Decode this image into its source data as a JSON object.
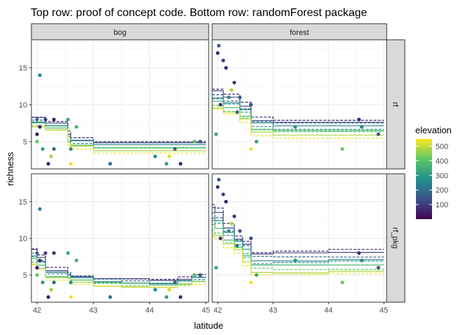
{
  "chart_data": {
    "type": "scatter",
    "title": "Top row: proof of concept code. Bottom row: randomForest package",
    "xlabel": "latitude",
    "ylabel": "richness",
    "xlim": [
      41.9,
      45.05
    ],
    "ylim": [
      1.3,
      18.8
    ],
    "xticks": [
      42,
      43,
      44,
      45
    ],
    "yticks": [
      5,
      10,
      15
    ],
    "grid": true,
    "col_facets": [
      "bog",
      "forest"
    ],
    "row_facets": [
      "rf",
      "rf_pkg"
    ],
    "color_scale": {
      "title": "elevation",
      "ticks": [
        100,
        200,
        300,
        400,
        500
      ],
      "range": [
        0,
        550
      ],
      "stops": [
        "#440154",
        "#3b528b",
        "#21908c",
        "#5dc863",
        "#fde725"
      ]
    },
    "points": {
      "bog": [
        {
          "x": 42.0,
          "y": 5,
          "elev": 420
        },
        {
          "x": 42.0,
          "y": 6,
          "elev": 30
        },
        {
          "x": 42.0,
          "y": 8,
          "elev": 180
        },
        {
          "x": 42.05,
          "y": 14,
          "elev": 250
        },
        {
          "x": 42.05,
          "y": 7,
          "elev": 80
        },
        {
          "x": 42.1,
          "y": 4,
          "elev": 300
        },
        {
          "x": 42.15,
          "y": 8,
          "elev": 100
        },
        {
          "x": 42.2,
          "y": 2,
          "elev": 50
        },
        {
          "x": 42.25,
          "y": 3,
          "elev": 470
        },
        {
          "x": 42.3,
          "y": 8,
          "elev": 60
        },
        {
          "x": 42.3,
          "y": 4,
          "elev": 200
        },
        {
          "x": 42.55,
          "y": 8,
          "elev": 330
        },
        {
          "x": 42.6,
          "y": 4,
          "elev": 280
        },
        {
          "x": 42.6,
          "y": 2,
          "elev": 540
        },
        {
          "x": 42.7,
          "y": 7,
          "elev": 360
        },
        {
          "x": 43.3,
          "y": 2,
          "elev": 200
        },
        {
          "x": 44.1,
          "y": 3,
          "elev": 270
        },
        {
          "x": 44.3,
          "y": 2,
          "elev": 320
        },
        {
          "x": 44.35,
          "y": 3,
          "elev": 520
        },
        {
          "x": 44.45,
          "y": 4,
          "elev": 180
        },
        {
          "x": 44.55,
          "y": 2,
          "elev": 60
        },
        {
          "x": 44.8,
          "y": 5,
          "elev": 400
        },
        {
          "x": 44.9,
          "y": 5,
          "elev": 150
        }
      ],
      "forest": [
        {
          "x": 41.97,
          "y": 6,
          "elev": 340
        },
        {
          "x": 42.0,
          "y": 17,
          "elev": 60
        },
        {
          "x": 42.02,
          "y": 18,
          "elev": 150
        },
        {
          "x": 42.05,
          "y": 10,
          "elev": 80
        },
        {
          "x": 42.1,
          "y": 16,
          "elev": 100
        },
        {
          "x": 42.15,
          "y": 15,
          "elev": 50
        },
        {
          "x": 42.2,
          "y": 11,
          "elev": 260
        },
        {
          "x": 42.25,
          "y": 12,
          "elev": 480
        },
        {
          "x": 42.3,
          "y": 13,
          "elev": 90
        },
        {
          "x": 42.35,
          "y": 9,
          "elev": 200
        },
        {
          "x": 42.4,
          "y": 11,
          "elev": 160
        },
        {
          "x": 42.6,
          "y": 4,
          "elev": 540
        },
        {
          "x": 42.6,
          "y": 10,
          "elev": 130
        },
        {
          "x": 42.7,
          "y": 5,
          "elev": 320
        },
        {
          "x": 43.4,
          "y": 7,
          "elev": 280
        },
        {
          "x": 44.25,
          "y": 4,
          "elev": 420
        },
        {
          "x": 44.55,
          "y": 8,
          "elev": 60
        },
        {
          "x": 44.6,
          "y": 7,
          "elev": 240
        },
        {
          "x": 44.9,
          "y": 6,
          "elev": 150
        }
      ]
    },
    "prediction_lines": {
      "elevations": [
        60,
        120,
        180,
        240,
        300,
        360,
        420,
        480,
        530
      ],
      "rf": {
        "bog": {
          "breaks": [
            41.9,
            42.15,
            42.55,
            42.6,
            43.0,
            45.0
          ],
          "high": [
            8.3,
            7.6,
            6.3,
            5.5,
            5.1
          ],
          "low": [
            6.9,
            6.4,
            4.5,
            4.1,
            3.6
          ]
        },
        "forest": {
          "breaks": [
            41.9,
            42.1,
            42.4,
            42.6,
            43.0,
            45.0
          ],
          "high": [
            12.1,
            11.3,
            10.2,
            8.3,
            8.0
          ],
          "low": [
            9.3,
            8.6,
            7.6,
            5.9,
            5.6
          ]
        }
      },
      "rf_pkg": {
        "bog": {
          "breaks": [
            41.9,
            42.0,
            42.15,
            42.55,
            42.6,
            43.0,
            43.5,
            44.0,
            44.5,
            44.75,
            45.0
          ],
          "high": [
            8.6,
            7.6,
            5.9,
            5.3,
            5.0,
            4.6,
            4.5,
            4.3,
            4.6,
            5.0
          ],
          "low": [
            6.3,
            5.6,
            4.3,
            4.3,
            3.9,
            3.5,
            3.3,
            3.2,
            3.5,
            3.8
          ]
        },
        "forest": {
          "breaks": [
            41.9,
            41.95,
            42.1,
            42.3,
            42.45,
            42.6,
            43.0,
            44.0,
            45.0
          ],
          "high": [
            14.6,
            14.0,
            11.9,
            10.3,
            9.7,
            8.2,
            8.3,
            8.4
          ],
          "low": [
            10.1,
            9.8,
            8.7,
            8.1,
            6.4,
            5.1,
            5.0,
            5.1
          ]
        }
      }
    }
  }
}
